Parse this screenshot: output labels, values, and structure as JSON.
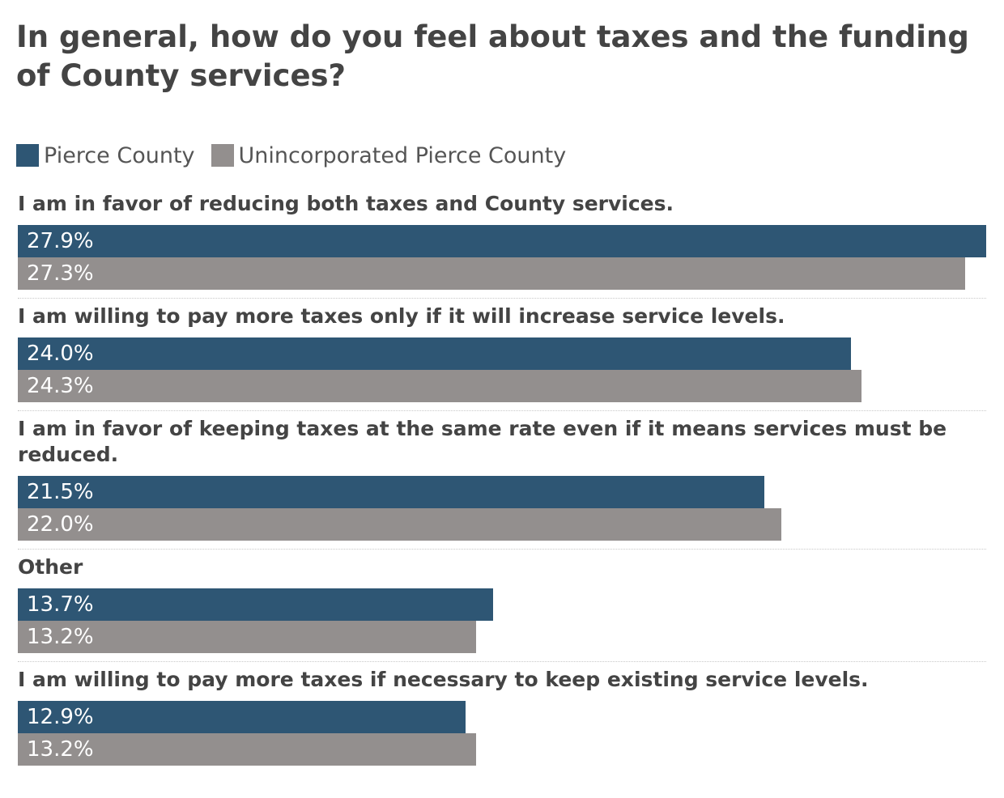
{
  "chart_data": {
    "type": "bar",
    "orientation": "horizontal",
    "title": "In general, how do you feel about taxes and the funding of County services?",
    "categories": [
      "I am in favor of reducing both taxes and County services.",
      "I am willing to pay more taxes only if it will increase service levels.",
      "I am in favor of keeping taxes at the same rate even if it means services must be reduced.",
      "Other",
      "I am willing to pay more taxes if necessary to keep existing service levels."
    ],
    "series": [
      {
        "name": "Pierce County",
        "color": "#2e5674",
        "values": [
          27.9,
          24.0,
          21.5,
          13.7,
          12.9
        ],
        "labels": [
          "27.9%",
          "24.0%",
          "21.5%",
          "13.7%",
          "12.9%"
        ]
      },
      {
        "name": "Unincorporated Pierce County",
        "color": "#938f8e",
        "values": [
          27.3,
          24.3,
          22.0,
          13.2,
          13.2
        ],
        "labels": [
          "27.3%",
          "24.3%",
          "22.0%",
          "13.2%",
          "13.2%"
        ]
      }
    ],
    "xlim": [
      0,
      27.9
    ],
    "unit": "%",
    "legend": "top-left",
    "grid": false
  }
}
